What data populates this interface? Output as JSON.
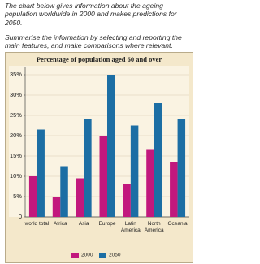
{
  "prompt": [
    "The chart below gives information about the ageing population worldwide in 2000 and makes predictions for 2050.",
    "Summarise the information by selecting and reporting the main features, and make comparisons where relevant."
  ],
  "chart_data": {
    "type": "bar",
    "title": "Percentage of population aged 60 and over",
    "categories": [
      "world total",
      "Africa",
      "Asia",
      "Europe",
      "Latin America",
      "North America",
      "Oceania"
    ],
    "series": [
      {
        "name": "2000",
        "color": "#c2187d",
        "values": [
          10,
          5,
          9.5,
          20,
          8,
          16.5,
          13.5
        ]
      },
      {
        "name": "2050",
        "color": "#1c6ea4",
        "values": [
          21.5,
          12.5,
          24,
          35,
          22.5,
          28,
          24
        ]
      }
    ],
    "ylim": [
      0,
      36
    ],
    "yticks": [
      0,
      {
        "value": 5,
        "label": "5%"
      },
      {
        "value": 10,
        "label": "10%"
      },
      {
        "value": 15,
        "label": "15%"
      },
      {
        "value": 20,
        "label": "20%"
      },
      {
        "value": 25,
        "label": "25%"
      },
      {
        "value": 30,
        "label": "30%"
      },
      {
        "value": 35,
        "label": "35%"
      }
    ],
    "grid": true,
    "legend": "bottom"
  }
}
